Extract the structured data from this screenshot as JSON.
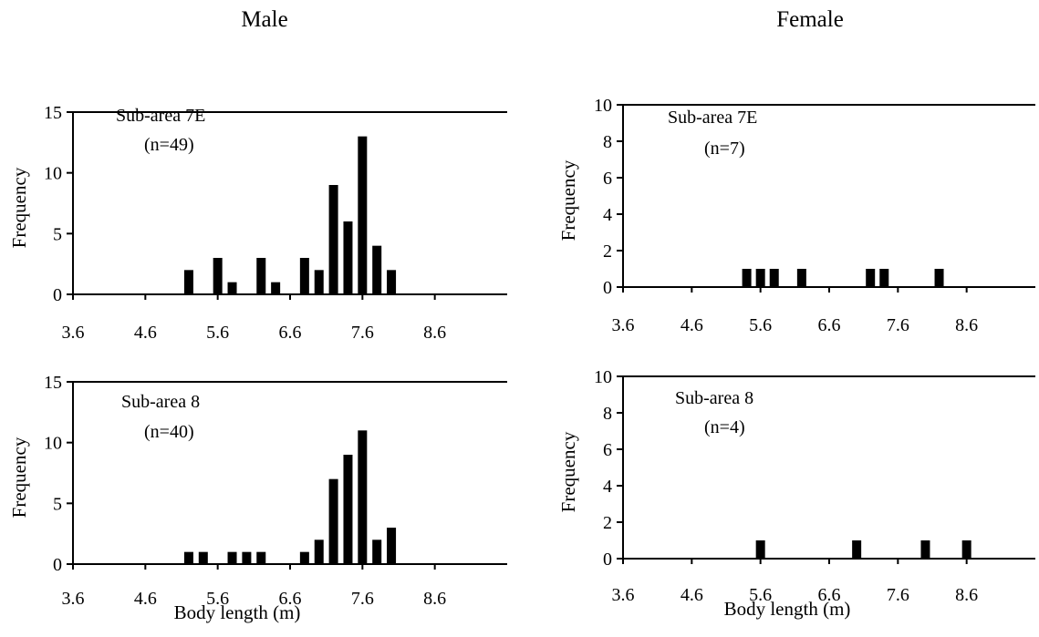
{
  "titles": {
    "male": "Male",
    "female": "Female"
  },
  "chart_data": [
    {
      "type": "bar",
      "panel": "male-7E",
      "annotation": "Sub-area 7E",
      "n_label": "(n=49)",
      "ylabel": "Frequency",
      "xlabel": "",
      "ylim": [
        0,
        15
      ],
      "yticks": [
        0,
        5,
        10,
        15
      ],
      "xlim": [
        3.6,
        9.6
      ],
      "xticks": [
        3.6,
        4.6,
        5.6,
        6.6,
        7.6,
        8.6
      ],
      "x": [
        5.2,
        5.6,
        5.8,
        6.2,
        6.4,
        6.8,
        7.0,
        7.2,
        7.4,
        7.6,
        7.8,
        8.0
      ],
      "values": [
        2,
        3,
        1,
        3,
        1,
        3,
        2,
        9,
        6,
        13,
        4,
        2
      ]
    },
    {
      "type": "bar",
      "panel": "female-7E",
      "annotation": "Sub-area 7E",
      "n_label": "(n=7)",
      "ylabel": "Frequency",
      "xlabel": "",
      "ylim": [
        0,
        10
      ],
      "yticks": [
        0,
        2,
        4,
        6,
        8,
        10
      ],
      "xlim": [
        3.6,
        9.6
      ],
      "xticks": [
        3.6,
        4.6,
        5.6,
        6.6,
        7.6,
        8.6
      ],
      "x": [
        5.4,
        5.6,
        5.8,
        6.2,
        7.2,
        7.4,
        8.2
      ],
      "values": [
        1,
        1,
        1,
        1,
        1,
        1,
        1
      ]
    },
    {
      "type": "bar",
      "panel": "male-8",
      "annotation": "Sub-area 8",
      "n_label": "(n=40)",
      "ylabel": "Frequency",
      "xlabel": "Body length (m)",
      "ylim": [
        0,
        15
      ],
      "yticks": [
        0,
        5,
        10,
        15
      ],
      "xlim": [
        3.6,
        9.6
      ],
      "xticks": [
        3.6,
        4.6,
        5.6,
        6.6,
        7.6,
        8.6
      ],
      "x": [
        5.2,
        5.4,
        5.8,
        6.0,
        6.2,
        6.8,
        7.0,
        7.2,
        7.4,
        7.6,
        7.8,
        8.0
      ],
      "values": [
        1,
        1,
        1,
        1,
        1,
        1,
        2,
        7,
        9,
        11,
        2,
        3
      ]
    },
    {
      "type": "bar",
      "panel": "female-8",
      "annotation": "Sub-area 8",
      "n_label": "(n=4)",
      "ylabel": "Frequency",
      "xlabel": "Body length (m)",
      "ylim": [
        0,
        10
      ],
      "yticks": [
        0,
        2,
        4,
        6,
        8,
        10
      ],
      "xlim": [
        3.6,
        9.6
      ],
      "xticks": [
        3.6,
        4.6,
        5.6,
        6.6,
        7.6,
        8.6
      ],
      "x": [
        5.6,
        7.0,
        8.0,
        8.6
      ],
      "values": [
        1,
        1,
        1,
        1
      ]
    }
  ]
}
